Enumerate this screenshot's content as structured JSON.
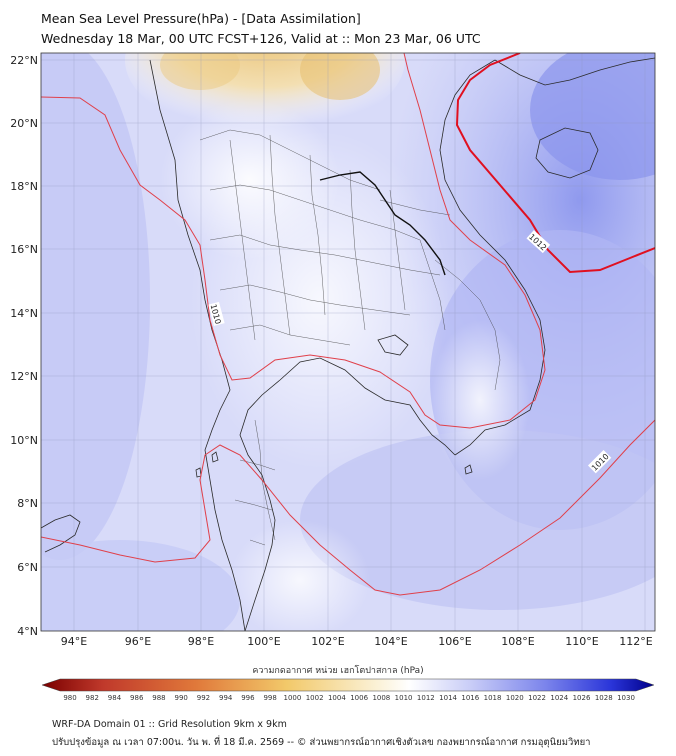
{
  "title": {
    "line1": "Mean Sea Level Pressure(hPa) - [Data Assimilation]",
    "line2": "Wednesday 18 Mar, 00 UTC FCST+126, Valid at :: Mon 23 Mar, 06 UTC"
  },
  "axes": {
    "lon_ticks": [
      "94°E",
      "96°E",
      "98°E",
      "100°E",
      "102°E",
      "104°E",
      "106°E",
      "108°E",
      "110°E",
      "112°E"
    ],
    "lat_ticks": [
      "22°N",
      "20°N",
      "18°N",
      "16°N",
      "14°N",
      "12°N",
      "10°N",
      "8°N",
      "6°N",
      "4°N"
    ]
  },
  "contours": {
    "label_1010": "1010",
    "label_1012": "1012",
    "thin_color": "#e0404a",
    "bold_color": "#e01020"
  },
  "colorbar": {
    "title": "ความกดอากาศ หน่วย เฮกโตปาสกาล (hPa)",
    "ticks": [
      "980",
      "982",
      "984",
      "986",
      "988",
      "990",
      "992",
      "994",
      "996",
      "998",
      "1000",
      "1002",
      "1004",
      "1006",
      "1008",
      "1010",
      "1012",
      "1014",
      "1016",
      "1018",
      "1020",
      "1022",
      "1024",
      "1026",
      "1028",
      "1030"
    ]
  },
  "footer": {
    "line1": "WRF-DA Domain 01 :: Grid Resolution 9km x 9km",
    "line2": "ปรับปรุงข้อมูล ณ เวลา 07:00น. วัน พ. ที่ 18 มี.ค. 2569 -- © ส่วนพยากรณ์อากาศเชิงตัวเลข กองพยากรณ์อากาศ กรมอุตุนิยมวิทยา"
  }
}
